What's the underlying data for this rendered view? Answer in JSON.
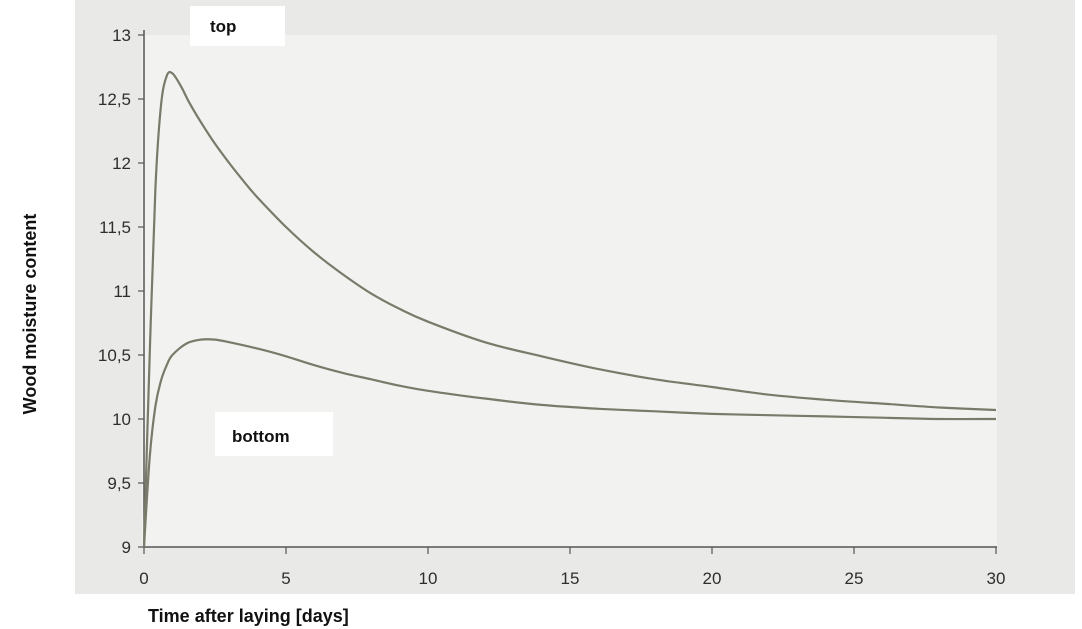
{
  "chart_data": {
    "type": "line",
    "xlabel": "Time after laying [days]",
    "ylabel": "Wood moisture content",
    "xlim": [
      0,
      30
    ],
    "ylim": [
      9,
      13
    ],
    "x_ticks": [
      0,
      5,
      10,
      15,
      20,
      25,
      30
    ],
    "y_ticks": [
      9,
      9.5,
      10,
      10.5,
      11,
      11.5,
      12,
      12.5,
      13
    ],
    "x_tick_labels": [
      "0",
      "5",
      "10",
      "15",
      "20",
      "25",
      "30"
    ],
    "y_tick_labels": [
      "9",
      "9,5",
      "10",
      "10,5",
      "11",
      "11,5",
      "12",
      "12,5",
      "13"
    ],
    "grid": false,
    "legend": "none",
    "colors": {
      "line": "#7a7a6a",
      "axis": "#555555",
      "plot_bg": "#f2f2f0",
      "paper": "#e9e9e7"
    },
    "series": [
      {
        "name": "top",
        "x": [
          0,
          0.2,
          0.4,
          0.6,
          0.8,
          1,
          1.3,
          1.6,
          2,
          2.5,
          3,
          3.5,
          4,
          5,
          6,
          7,
          8,
          9,
          10,
          12,
          14,
          16,
          18,
          20,
          22,
          24,
          26,
          28,
          30
        ],
        "y": [
          9,
          10.5,
          11.8,
          12.45,
          12.68,
          12.7,
          12.6,
          12.47,
          12.32,
          12.15,
          12.0,
          11.86,
          11.73,
          11.5,
          11.3,
          11.13,
          10.98,
          10.86,
          10.76,
          10.6,
          10.49,
          10.39,
          10.31,
          10.25,
          10.19,
          10.15,
          10.12,
          10.09,
          10.07
        ]
      },
      {
        "name": "bottom",
        "x": [
          0,
          0.2,
          0.4,
          0.6,
          0.8,
          1,
          1.5,
          2,
          2.5,
          3,
          4,
          5,
          6,
          7,
          8,
          9,
          10,
          12,
          14,
          16,
          18,
          20,
          22,
          24,
          26,
          28,
          30
        ],
        "y": [
          9,
          9.7,
          10.1,
          10.3,
          10.42,
          10.5,
          10.59,
          10.62,
          10.62,
          10.6,
          10.55,
          10.49,
          10.42,
          10.36,
          10.31,
          10.26,
          10.22,
          10.16,
          10.11,
          10.08,
          10.06,
          10.04,
          10.03,
          10.02,
          10.01,
          10.0,
          10.0
        ]
      }
    ]
  }
}
